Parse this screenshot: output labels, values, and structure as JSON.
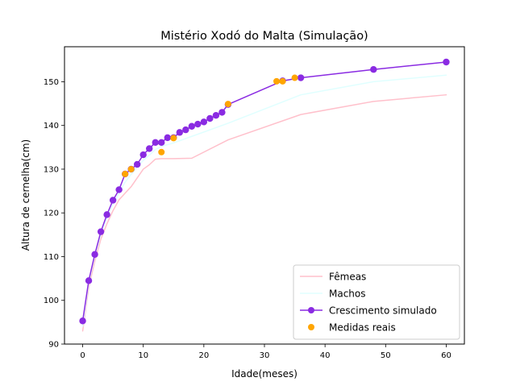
{
  "chart_data": {
    "type": "line",
    "title": "Mistério Xodó do Malta (Simulação)",
    "xlabel": "Idade(meses)",
    "ylabel": "Altura de cernelha(cm)",
    "xlim": [
      -3,
      63
    ],
    "ylim": [
      90,
      158
    ],
    "x_ticks": [
      0,
      10,
      20,
      30,
      40,
      50,
      60
    ],
    "y_ticks": [
      90,
      100,
      110,
      120,
      130,
      140,
      150
    ],
    "grid": false,
    "legend_position": "lower-right",
    "series": [
      {
        "name": "Fêmeas",
        "kind": "line",
        "color": "#ffc0cb",
        "x": [
          0,
          1,
          2,
          3,
          4,
          5,
          6,
          7,
          8,
          9,
          10,
          11,
          12,
          13,
          14,
          15,
          18,
          24,
          36,
          48,
          60
        ],
        "y": [
          93,
          103,
          109,
          114,
          117.5,
          120.5,
          123,
          124.5,
          126,
          128,
          130,
          131,
          132.3,
          132.4,
          132.4,
          132.4,
          132.5,
          136.7,
          142.5,
          145.5,
          147
        ]
      },
      {
        "name": "Machos",
        "kind": "line",
        "color": "#e0ffff",
        "x": [
          0,
          1,
          2,
          3,
          4,
          5,
          6,
          7,
          8,
          9,
          10,
          11,
          12,
          13,
          14,
          15,
          18,
          24,
          36,
          48,
          60
        ],
        "y": [
          94,
          104,
          110,
          115,
          119,
          122,
          124.5,
          127,
          128.8,
          130.5,
          132,
          133.2,
          134.5,
          135.2,
          135.6,
          136,
          137.5,
          140.5,
          147,
          150,
          151.5
        ]
      },
      {
        "name": "Crescimento simulado",
        "kind": "line-markers",
        "color": "#8a2be2",
        "x": [
          0,
          1,
          2,
          3,
          4,
          5,
          6,
          7,
          8,
          9,
          10,
          11,
          12,
          13,
          14,
          15,
          16,
          17,
          18,
          19,
          20,
          21,
          22,
          23,
          24,
          33,
          36,
          48,
          60
        ],
        "y": [
          95.3,
          104.5,
          110.5,
          115.7,
          119.6,
          122.9,
          125.3,
          128.9,
          130.0,
          131.1,
          133.3,
          134.7,
          136.1,
          136.1,
          137.2,
          137.2,
          138.4,
          139.0,
          139.8,
          140.3,
          140.8,
          141.6,
          142.3,
          143.0,
          144.8,
          150.2,
          150.9,
          152.8,
          154.5
        ]
      },
      {
        "name": "Medidas reais",
        "kind": "scatter",
        "color": "#ffa500",
        "x": [
          7,
          8,
          13,
          15,
          24,
          32,
          33,
          35
        ],
        "y": [
          128.9,
          130.0,
          133.9,
          137.1,
          144.9,
          150.1,
          150.1,
          150.9
        ]
      }
    ]
  }
}
